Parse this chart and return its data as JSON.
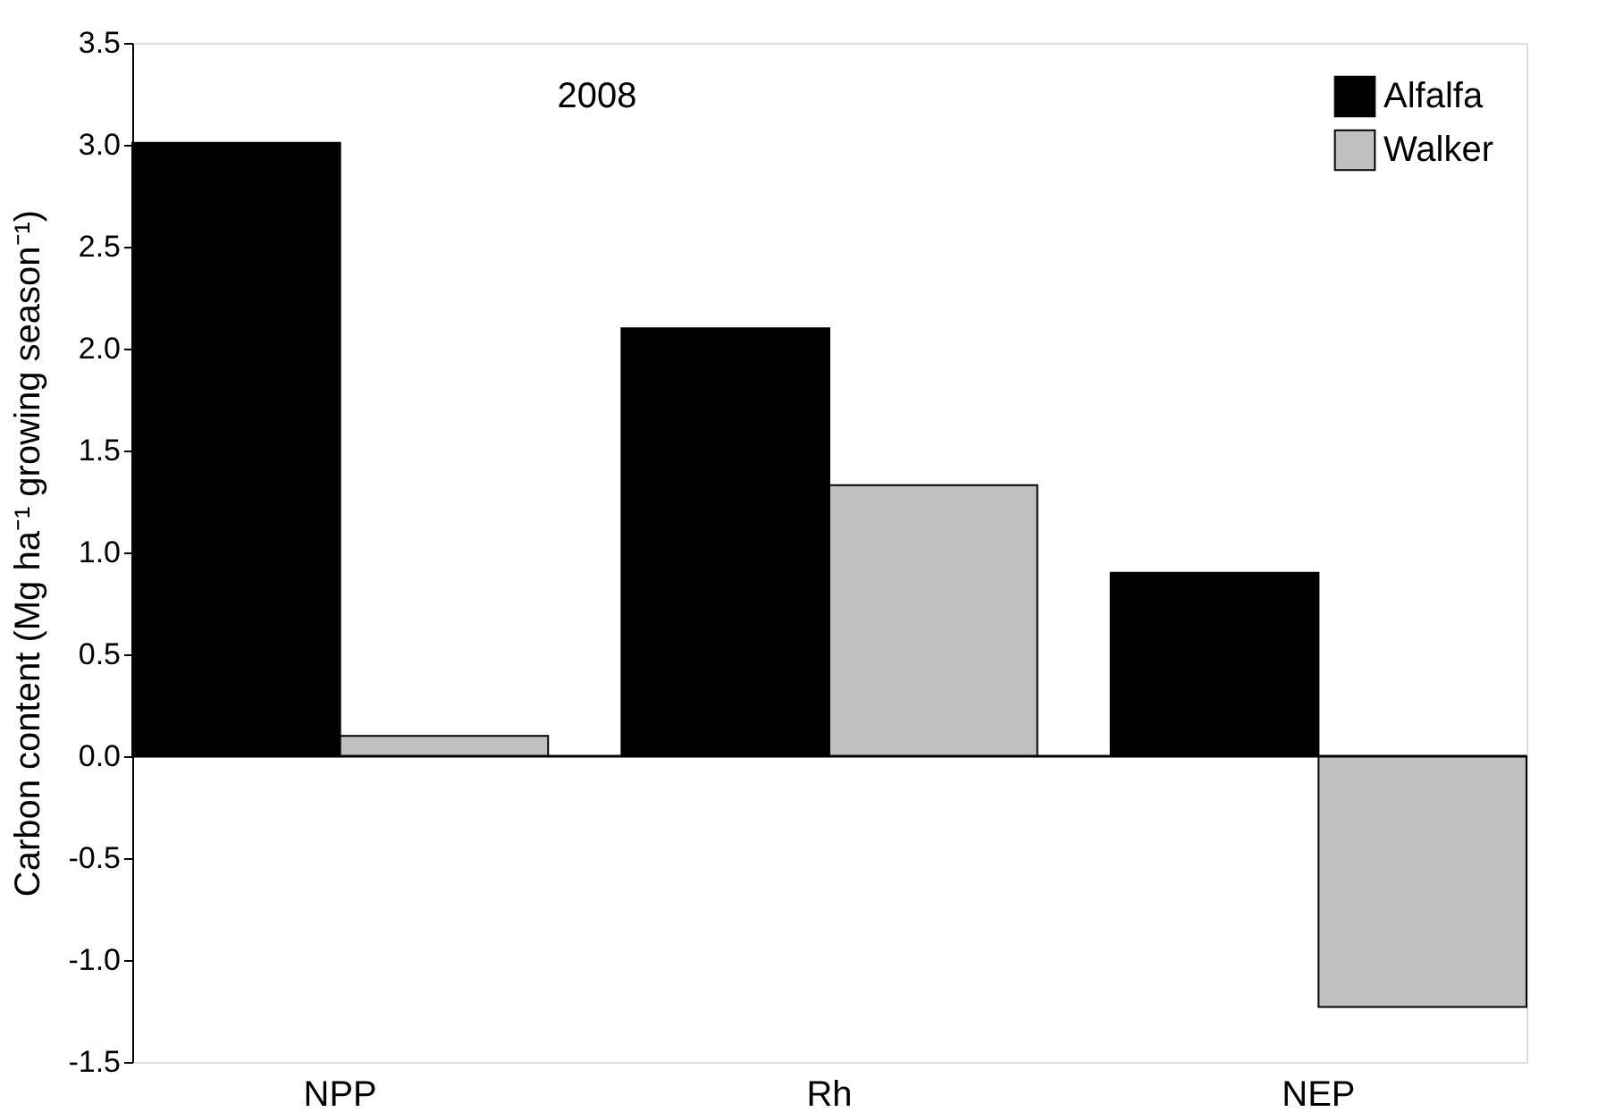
{
  "chart_data": {
    "type": "bar",
    "ylabel": "Carbon content (Mg ha⁻¹ growing season⁻¹)",
    "categories": [
      "NPP",
      "Rh",
      "NEP"
    ],
    "series": [
      {
        "name": "Alfalfa",
        "color": "#000000",
        "values": [
          3.01,
          2.1,
          0.9
        ]
      },
      {
        "name": "Walker",
        "color": "#c0c0c0",
        "values": [
          0.1,
          1.33,
          -1.23
        ]
      }
    ],
    "ylim": [
      -1.5,
      3.5
    ],
    "yticks": [
      {
        "value": -1.5,
        "label": "-1.5"
      },
      {
        "value": -1.0,
        "label": "-1.0"
      },
      {
        "value": -0.5,
        "label": "-0.5"
      },
      {
        "value": 0,
        "label": "0.0"
      },
      {
        "value": 0.5,
        "label": "0.5"
      },
      {
        "value": 1.0,
        "label": "1.0"
      },
      {
        "value": 1.5,
        "label": "1.5"
      },
      {
        "value": 2.0,
        "label": "2.0"
      },
      {
        "value": 2.5,
        "label": "2.5"
      },
      {
        "value": 3.0,
        "label": "3.0"
      },
      {
        "value": 3.5,
        "label": "3.5"
      }
    ],
    "ref_lines": [
      {
        "axis": "y",
        "value": 0,
        "label": null,
        "color": "#000000"
      }
    ],
    "annotations": [
      "2008"
    ],
    "legend": "top right",
    "grid": false
  }
}
